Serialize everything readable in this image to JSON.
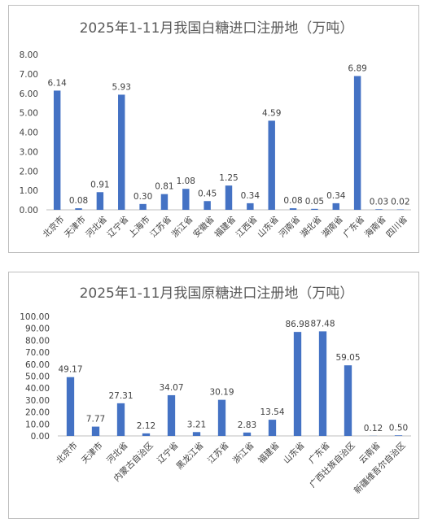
{
  "chart_data": [
    {
      "type": "bar",
      "title": "2025年1-11月我国白糖进口注册地（万吨）",
      "categories": [
        "北京市",
        "天津市",
        "河北省",
        "辽宁省",
        "上海市",
        "江苏省",
        "浙江省",
        "安徽省",
        "福建省",
        "江西省",
        "山东省",
        "河南省",
        "湖北省",
        "湖南省",
        "广东省",
        "海南省",
        "四川省"
      ],
      "values": [
        6.14,
        0.08,
        0.91,
        5.93,
        0.3,
        0.81,
        1.08,
        0.45,
        1.25,
        0.34,
        4.59,
        0.08,
        0.05,
        0.34,
        6.89,
        0.03,
        0.02
      ],
      "data_labels": [
        "6.14",
        "0.08",
        "0.91",
        "5.93",
        "0.30",
        "0.81",
        "1.08",
        "0.45",
        "1.25",
        "0.34",
        "4.59",
        "0.08",
        "0.05",
        "0.34",
        "6.89",
        "0.03",
        "0.02"
      ],
      "yticks": [
        "0.00",
        "1.00",
        "2.00",
        "3.00",
        "4.00",
        "5.00",
        "6.00",
        "7.00",
        "8.00"
      ],
      "ylim": [
        0,
        8
      ],
      "grid": false,
      "legend": "none",
      "bar_color": "#4472C4"
    },
    {
      "type": "bar",
      "title": "2025年1-11月我国原糖进口注册地（万吨）",
      "categories": [
        "北京市",
        "天津市",
        "河北省",
        "内蒙古自治区",
        "辽宁省",
        "黑龙江省",
        "江苏省",
        "浙江省",
        "福建省",
        "山东省",
        "广东省",
        "广西壮族自治区",
        "云南省",
        "新疆维吾尔自治区"
      ],
      "values": [
        49.17,
        7.77,
        27.31,
        2.12,
        34.07,
        3.21,
        30.19,
        2.83,
        13.54,
        86.98,
        87.48,
        59.05,
        0.12,
        0.5
      ],
      "data_labels": [
        "49.17",
        "7.77",
        "27.31",
        "2.12",
        "34.07",
        "3.21",
        "30.19",
        "2.83",
        "13.54",
        "86.98",
        "87.48",
        "59.05",
        "0.12",
        "0.50"
      ],
      "yticks": [
        "0.00",
        "10.00",
        "20.00",
        "30.00",
        "40.00",
        "50.00",
        "60.00",
        "70.00",
        "80.00",
        "90.00",
        "100.00"
      ],
      "ylim": [
        0,
        100
      ],
      "grid": false,
      "legend": "none",
      "bar_color": "#4472C4"
    }
  ]
}
